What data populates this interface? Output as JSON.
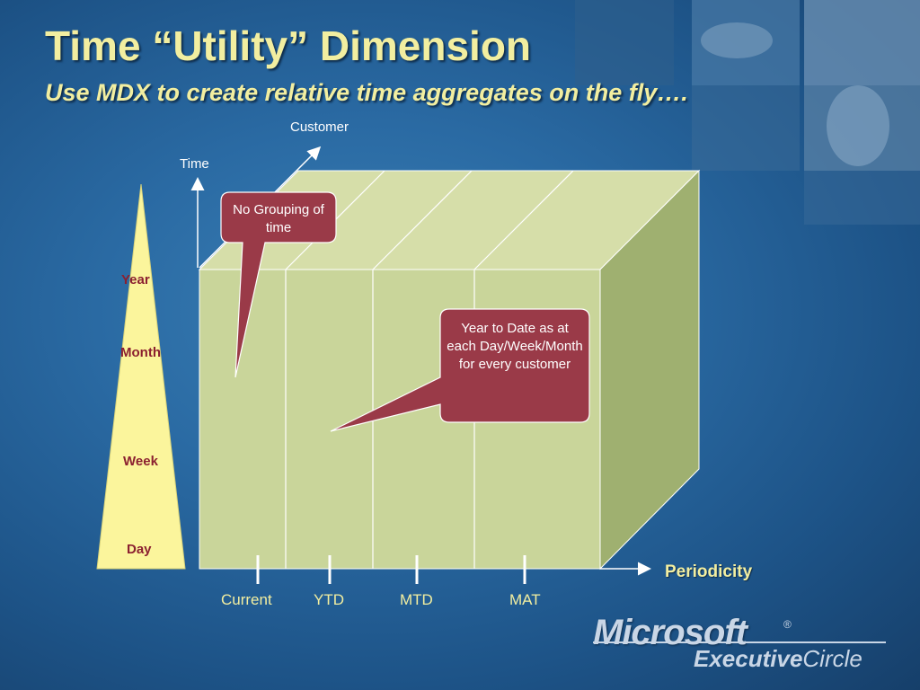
{
  "slide": {
    "title": "Time “Utility” Dimension",
    "subtitle": "Use MDX to create relative time aggregates on the fly…."
  },
  "axes": {
    "customer": "Customer",
    "time": "Time",
    "periodicity": "Periodicity"
  },
  "hierarchy": {
    "levels": [
      "Year",
      "Month",
      "Week",
      "Day"
    ]
  },
  "columns": [
    "Current",
    "YTD",
    "MTD",
    "MAT"
  ],
  "callouts": {
    "no_grouping": "No Grouping of time",
    "ytd": "Year to Date as at each Day/Week/Month for every customer"
  },
  "logo": {
    "brand": "Microsoft",
    "registered": "®",
    "executive": "Executive",
    "circle": "Circle"
  },
  "colors": {
    "background": "#2a6aa3",
    "title": "#f2eea0",
    "cube_front": "#c9d59a",
    "cube_top": "#d6dea9",
    "cube_side": "#9fb070",
    "pyramid": "#fbf59c",
    "callout": "#9a3a48",
    "level_text": "#8b2030"
  }
}
